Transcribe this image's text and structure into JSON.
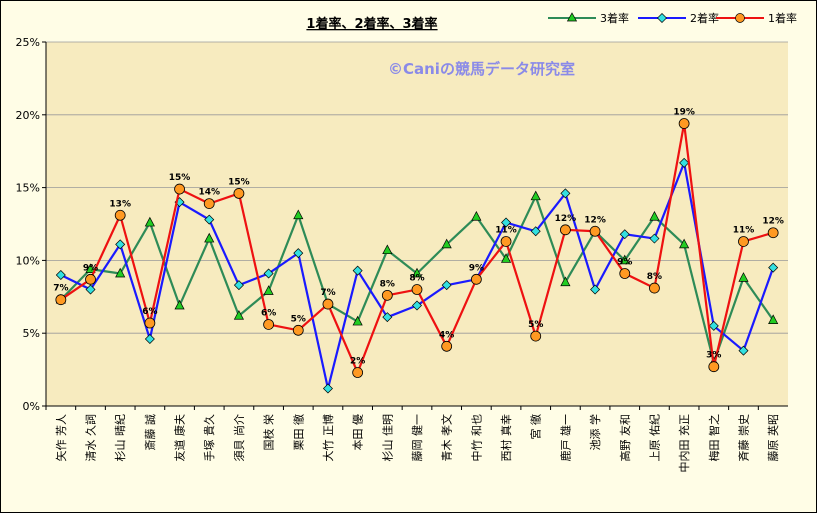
{
  "chart_data": {
    "type": "line",
    "title": "1着率、2着率、3着率",
    "watermark": "©Caniの競馬データ研究室",
    "ylim": [
      0,
      25
    ],
    "yticks": [
      "0%",
      "5%",
      "10%",
      "15%",
      "20%",
      "25%"
    ],
    "grid": true,
    "legend_position": "top-right",
    "categories": [
      "矢作 芳人",
      "清水 久詞",
      "杉山 晴紀",
      "斎藤 誠",
      "友道 康夫",
      "手塚 貴久",
      "須貝 尚介",
      "国枝 栄",
      "栗田 徹",
      "大竹 正博",
      "本田 優",
      "杉山 佳明",
      "藤岡 健一",
      "青木 孝文",
      "中竹 和也",
      "西村 真幸",
      "宮 徹",
      "鹿戸 雄一",
      "池添 学",
      "高野 友和",
      "上原 佑紀",
      "中内田 充正",
      "梅田 智之",
      "斉藤 崇史",
      "藤原 英昭"
    ],
    "series": [
      {
        "name": "3着率",
        "color": "#2e8b57",
        "marker": "triangle",
        "marker_fill": "#22cc22",
        "values": [
          7.3,
          9.4,
          9.1,
          12.6,
          6.9,
          11.5,
          6.2,
          7.9,
          13.1,
          7.0,
          5.8,
          10.7,
          9.1,
          11.1,
          13.0,
          10.1,
          14.4,
          8.5,
          12.0,
          10.0,
          13.0,
          11.1,
          3.0,
          8.8,
          5.9
        ]
      },
      {
        "name": "2着率",
        "color": "#1a1aff",
        "marker": "diamond",
        "marker_fill": "#33e0e0",
        "values": [
          9.0,
          8.0,
          11.1,
          4.6,
          14.0,
          12.8,
          8.3,
          9.1,
          10.5,
          1.2,
          9.3,
          6.1,
          6.9,
          8.3,
          8.7,
          12.6,
          12.0,
          14.6,
          8.0,
          11.8,
          11.5,
          16.7,
          5.5,
          3.8,
          9.5
        ]
      },
      {
        "name": "1着率",
        "color": "#ee1111",
        "marker": "circle",
        "marker_fill": "#ff9922",
        "values": [
          7.3,
          8.7,
          13.1,
          5.7,
          14.9,
          13.9,
          14.6,
          5.6,
          5.2,
          7.0,
          2.3,
          7.6,
          8.0,
          4.1,
          8.7,
          11.3,
          4.8,
          12.1,
          12.0,
          9.1,
          8.1,
          19.4,
          2.7,
          11.3,
          11.9
        ]
      }
    ],
    "data_labels": {
      "series": "1着率",
      "labels": [
        "7%",
        "9%",
        "13%",
        "6%",
        "15%",
        "14%",
        "15%",
        "6%",
        "5%",
        "7%",
        "2%",
        "8%",
        "8%",
        "4%",
        "9%",
        "11%",
        "5%",
        "12%",
        "12%",
        "9%",
        "8%",
        "19%",
        "3%",
        "11%",
        "12%"
      ]
    }
  },
  "colors": {
    "frame_background": "#fffde6",
    "plot_background": "#f7ebbf",
    "gridline": "#9a9a9a"
  }
}
